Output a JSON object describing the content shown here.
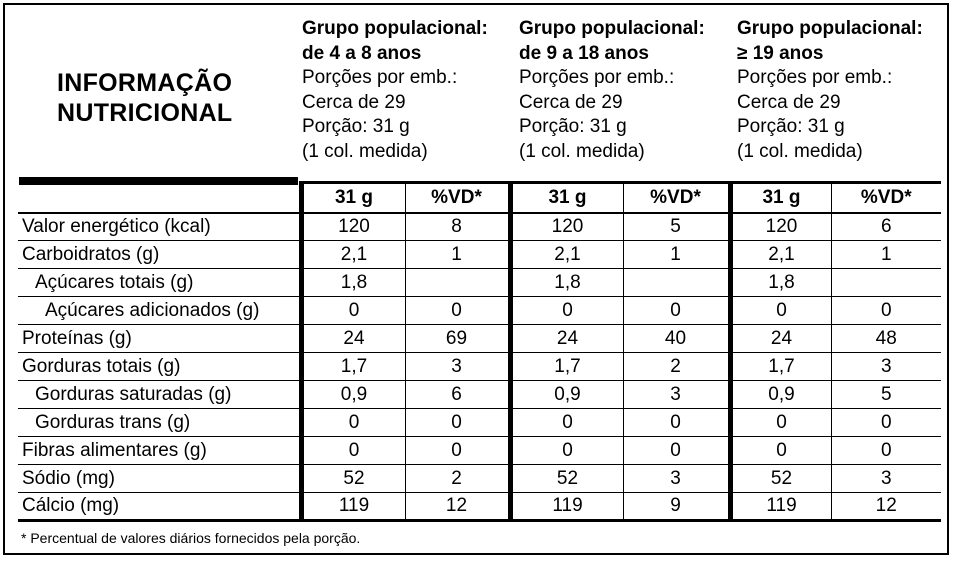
{
  "title": {
    "line1": "INFORMAÇÃO",
    "line2": "NUTRICIONAL"
  },
  "groups": [
    {
      "name1": "Grupo populacional:",
      "name2": "de 4 a 8 anos",
      "servings": "Porções por emb.:",
      "servings_value": "Cerca de 29",
      "portion": "Porção: 31 g",
      "measure": "(1 col. medida)"
    },
    {
      "name1": "Grupo populacional:",
      "name2": "de 9 a 18 anos",
      "servings": "Porções por emb.:",
      "servings_value": "Cerca de 29",
      "portion": "Porção: 31 g",
      "measure": "(1 col. medida)"
    },
    {
      "name1": "Grupo populacional:",
      "name2": "≥ 19 anos",
      "servings": "Porções por emb.:",
      "servings_value": "Cerca de 29",
      "portion": "Porção: 31 g",
      "measure": "(1 col. medida)"
    }
  ],
  "col_headers": {
    "amount": "31 g",
    "vd": "%VD*"
  },
  "rows": [
    {
      "label": "Valor energético (kcal)",
      "indent": 0,
      "values": [
        "120",
        "8",
        "120",
        "5",
        "120",
        "6"
      ]
    },
    {
      "label": "Carboidratos (g)",
      "indent": 0,
      "values": [
        "2,1",
        "1",
        "2,1",
        "1",
        "2,1",
        "1"
      ]
    },
    {
      "label": "Açúcares totais (g)",
      "indent": 1,
      "values": [
        "1,8",
        "",
        "1,8",
        "",
        "1,8",
        ""
      ]
    },
    {
      "label": "Açúcares adicionados (g)",
      "indent": 2,
      "values": [
        "0",
        "0",
        "0",
        "0",
        "0",
        "0"
      ]
    },
    {
      "label": "Proteínas (g)",
      "indent": 0,
      "values": [
        "24",
        "69",
        "24",
        "40",
        "24",
        "48"
      ]
    },
    {
      "label": "Gorduras totais (g)",
      "indent": 0,
      "values": [
        "1,7",
        "3",
        "1,7",
        "2",
        "1,7",
        "3"
      ]
    },
    {
      "label": "Gorduras saturadas (g)",
      "indent": 1,
      "values": [
        "0,9",
        "6",
        "0,9",
        "3",
        "0,9",
        "5"
      ]
    },
    {
      "label": "Gorduras trans (g)",
      "indent": 1,
      "values": [
        "0",
        "0",
        "0",
        "0",
        "0",
        "0"
      ]
    },
    {
      "label": "Fibras alimentares (g)",
      "indent": 0,
      "values": [
        "0",
        "0",
        "0",
        "0",
        "0",
        "0"
      ]
    },
    {
      "label": "Sódio (mg)",
      "indent": 0,
      "values": [
        "52",
        "2",
        "52",
        "3",
        "52",
        "3"
      ]
    },
    {
      "label": "Cálcio (mg)",
      "indent": 0,
      "values": [
        "119",
        "12",
        "119",
        "9",
        "119",
        "12"
      ]
    }
  ],
  "footnote": "* Percentual de valores diários fornecidos pela porção."
}
